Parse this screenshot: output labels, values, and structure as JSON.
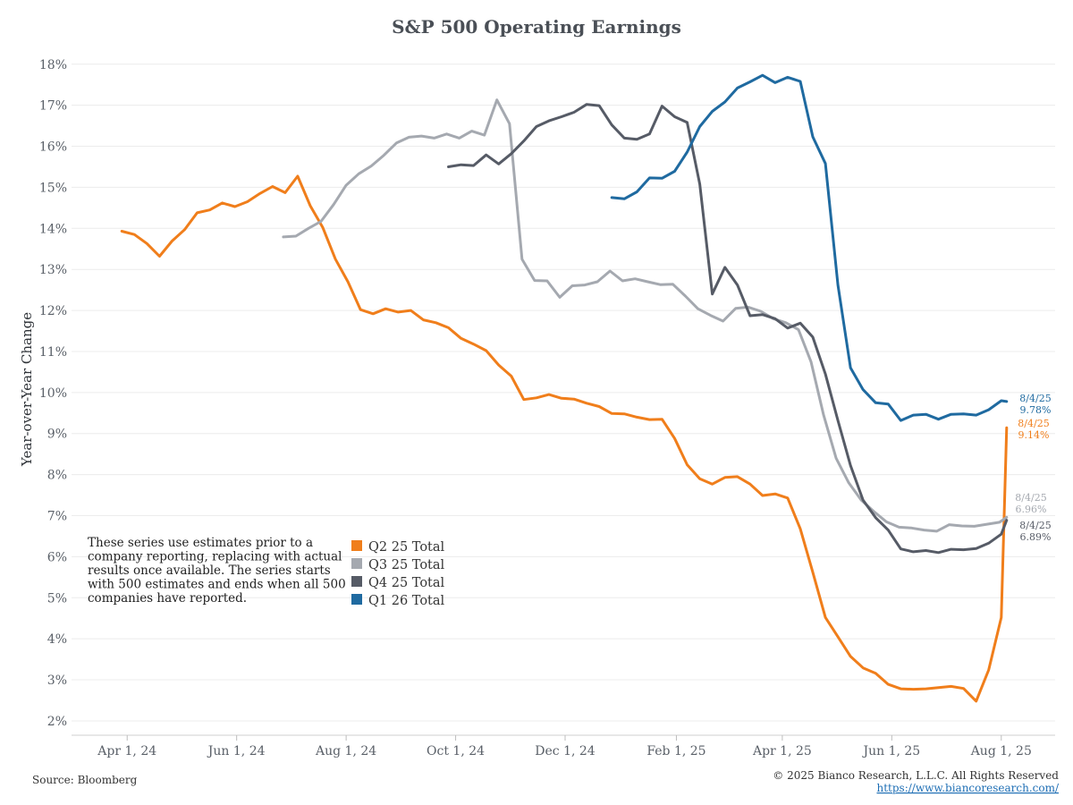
{
  "chart_data": {
    "type": "line",
    "title": "S&P 500 Operating Earnings",
    "ylabel": "Year-over-Year Change",
    "xlabel": "",
    "x_range": [
      "2024-03-01",
      "2025-08-31"
    ],
    "x_ticks": [
      {
        "date": "2024-04-01",
        "label": "Apr 1, 24"
      },
      {
        "date": "2024-06-01",
        "label": "Jun 1, 24"
      },
      {
        "date": "2024-08-01",
        "label": "Aug 1, 24"
      },
      {
        "date": "2024-10-01",
        "label": "Oct 1, 24"
      },
      {
        "date": "2024-12-01",
        "label": "Dec 1, 24"
      },
      {
        "date": "2025-02-01",
        "label": "Feb 1, 25"
      },
      {
        "date": "2025-04-01",
        "label": "Apr 1, 25"
      },
      {
        "date": "2025-06-01",
        "label": "Jun 1, 25"
      },
      {
        "date": "2025-08-01",
        "label": "Aug 1, 25"
      }
    ],
    "ylim": [
      1.65,
      18.3
    ],
    "y_ticks": [
      2,
      3,
      4,
      5,
      6,
      7,
      8,
      9,
      10,
      11,
      12,
      13,
      14,
      15,
      16,
      17,
      18
    ],
    "y_tick_labels": [
      "2%",
      "3%",
      "4%",
      "5%",
      "6%",
      "7%",
      "8%",
      "9%",
      "10%",
      "11%",
      "12%",
      "13%",
      "14%",
      "15%",
      "16%",
      "17%",
      "18%"
    ],
    "grid": true,
    "legend_position": "lower-middle",
    "series": [
      {
        "name": "Q2 25 Total",
        "color": "#f07e1b",
        "points": [
          [
            "2024-03-29",
            13.93
          ],
          [
            "2024-04-05",
            13.85
          ],
          [
            "2024-04-12",
            13.63
          ],
          [
            "2024-04-19",
            13.32
          ],
          [
            "2024-04-26",
            13.69
          ],
          [
            "2024-05-03",
            13.97
          ],
          [
            "2024-05-10",
            14.38
          ],
          [
            "2024-05-17",
            14.45
          ],
          [
            "2024-05-24",
            14.62
          ],
          [
            "2024-05-31",
            14.53
          ],
          [
            "2024-06-07",
            14.65
          ],
          [
            "2024-06-14",
            14.85
          ],
          [
            "2024-06-21",
            15.02
          ],
          [
            "2024-06-28",
            14.87
          ],
          [
            "2024-07-05",
            15.27
          ],
          [
            "2024-07-12",
            14.55
          ],
          [
            "2024-07-19",
            14.02
          ],
          [
            "2024-07-26",
            13.25
          ],
          [
            "2024-08-02",
            12.7
          ],
          [
            "2024-08-09",
            12.02
          ],
          [
            "2024-08-16",
            11.92
          ],
          [
            "2024-08-23",
            12.04
          ],
          [
            "2024-08-30",
            11.96
          ],
          [
            "2024-09-06",
            12.0
          ],
          [
            "2024-09-13",
            11.77
          ],
          [
            "2024-09-20",
            11.7
          ],
          [
            "2024-09-27",
            11.58
          ],
          [
            "2024-10-04",
            11.32
          ],
          [
            "2024-10-11",
            11.18
          ],
          [
            "2024-10-18",
            11.02
          ],
          [
            "2024-10-25",
            10.67
          ],
          [
            "2024-11-01",
            10.4
          ],
          [
            "2024-11-08",
            9.83
          ],
          [
            "2024-11-15",
            9.87
          ],
          [
            "2024-11-22",
            9.95
          ],
          [
            "2024-11-29",
            9.86
          ],
          [
            "2024-12-06",
            9.84
          ],
          [
            "2024-12-13",
            9.74
          ],
          [
            "2024-12-20",
            9.66
          ],
          [
            "2024-12-27",
            9.49
          ],
          [
            "2025-01-03",
            9.48
          ],
          [
            "2025-01-10",
            9.4
          ],
          [
            "2025-01-17",
            9.34
          ],
          [
            "2025-01-24",
            9.35
          ],
          [
            "2025-01-31",
            8.88
          ],
          [
            "2025-02-07",
            8.24
          ],
          [
            "2025-02-14",
            7.9
          ],
          [
            "2025-02-21",
            7.77
          ],
          [
            "2025-02-28",
            7.93
          ],
          [
            "2025-03-07",
            7.95
          ],
          [
            "2025-03-14",
            7.77
          ],
          [
            "2025-03-21",
            7.49
          ],
          [
            "2025-03-28",
            7.53
          ],
          [
            "2025-04-04",
            7.43
          ],
          [
            "2025-04-11",
            6.68
          ],
          [
            "2025-04-18",
            5.62
          ],
          [
            "2025-04-25",
            4.52
          ],
          [
            "2025-05-02",
            4.05
          ],
          [
            "2025-05-09",
            3.57
          ],
          [
            "2025-05-16",
            3.29
          ],
          [
            "2025-05-23",
            3.16
          ],
          [
            "2025-05-30",
            2.89
          ],
          [
            "2025-06-06",
            2.78
          ],
          [
            "2025-06-13",
            2.77
          ],
          [
            "2025-06-20",
            2.78
          ],
          [
            "2025-06-27",
            2.81
          ],
          [
            "2025-07-04",
            2.84
          ],
          [
            "2025-07-11",
            2.79
          ],
          [
            "2025-07-18",
            2.48
          ],
          [
            "2025-07-25",
            3.24
          ],
          [
            "2025-08-01",
            4.52
          ],
          [
            "2025-08-04",
            9.14
          ]
        ]
      },
      {
        "name": "Q3 25 Total",
        "color": "#a5a9b0",
        "points": [
          [
            "2024-06-27",
            13.79
          ],
          [
            "2024-07-04",
            13.81
          ],
          [
            "2024-07-11",
            14.0
          ],
          [
            "2024-07-18",
            14.17
          ],
          [
            "2024-07-25",
            14.58
          ],
          [
            "2024-08-01",
            15.05
          ],
          [
            "2024-08-08",
            15.33
          ],
          [
            "2024-08-15",
            15.52
          ],
          [
            "2024-08-22",
            15.78
          ],
          [
            "2024-08-29",
            16.08
          ],
          [
            "2024-09-05",
            16.22
          ],
          [
            "2024-09-12",
            16.25
          ],
          [
            "2024-09-19",
            16.2
          ],
          [
            "2024-09-26",
            16.3
          ],
          [
            "2024-10-03",
            16.2
          ],
          [
            "2024-10-10",
            16.37
          ],
          [
            "2024-10-17",
            16.27
          ],
          [
            "2024-10-24",
            17.13
          ],
          [
            "2024-10-31",
            16.55
          ],
          [
            "2024-11-07",
            13.25
          ],
          [
            "2024-11-14",
            12.73
          ],
          [
            "2024-11-21",
            12.72
          ],
          [
            "2024-11-28",
            12.32
          ],
          [
            "2024-12-05",
            12.6
          ],
          [
            "2024-12-12",
            12.62
          ],
          [
            "2024-12-19",
            12.7
          ],
          [
            "2024-12-26",
            12.96
          ],
          [
            "2025-01-02",
            12.72
          ],
          [
            "2025-01-09",
            12.77
          ],
          [
            "2025-01-16",
            12.7
          ],
          [
            "2025-01-23",
            12.63
          ],
          [
            "2025-01-30",
            12.64
          ],
          [
            "2025-02-06",
            12.35
          ],
          [
            "2025-02-13",
            12.04
          ],
          [
            "2025-02-20",
            11.88
          ],
          [
            "2025-02-27",
            11.74
          ],
          [
            "2025-03-06",
            12.05
          ],
          [
            "2025-03-13",
            12.08
          ],
          [
            "2025-03-20",
            11.98
          ],
          [
            "2025-03-27",
            11.8
          ],
          [
            "2025-04-03",
            11.7
          ],
          [
            "2025-04-10",
            11.53
          ],
          [
            "2025-04-17",
            10.75
          ],
          [
            "2025-04-24",
            9.45
          ],
          [
            "2025-05-01",
            8.4
          ],
          [
            "2025-05-08",
            7.8
          ],
          [
            "2025-05-15",
            7.38
          ],
          [
            "2025-05-22",
            7.1
          ],
          [
            "2025-05-29",
            6.85
          ],
          [
            "2025-06-05",
            6.72
          ],
          [
            "2025-06-12",
            6.7
          ],
          [
            "2025-06-19",
            6.65
          ],
          [
            "2025-06-26",
            6.62
          ],
          [
            "2025-07-03",
            6.78
          ],
          [
            "2025-07-10",
            6.75
          ],
          [
            "2025-07-17",
            6.74
          ],
          [
            "2025-07-24",
            6.79
          ],
          [
            "2025-07-31",
            6.84
          ],
          [
            "2025-08-04",
            6.96
          ]
        ]
      },
      {
        "name": "Q4 25 Total",
        "color": "#565b66",
        "points": [
          [
            "2024-09-27",
            15.5
          ],
          [
            "2024-10-04",
            15.55
          ],
          [
            "2024-10-11",
            15.53
          ],
          [
            "2024-10-18",
            15.79
          ],
          [
            "2024-10-25",
            15.57
          ],
          [
            "2024-11-01",
            15.82
          ],
          [
            "2024-11-08",
            16.13
          ],
          [
            "2024-11-15",
            16.48
          ],
          [
            "2024-11-22",
            16.62
          ],
          [
            "2024-11-29",
            16.72
          ],
          [
            "2024-12-06",
            16.83
          ],
          [
            "2024-12-13",
            17.02
          ],
          [
            "2024-12-20",
            16.99
          ],
          [
            "2024-12-27",
            16.52
          ],
          [
            "2025-01-03",
            16.2
          ],
          [
            "2025-01-10",
            16.17
          ],
          [
            "2025-01-17",
            16.3
          ],
          [
            "2025-01-24",
            16.98
          ],
          [
            "2025-01-31",
            16.72
          ],
          [
            "2025-02-07",
            16.58
          ],
          [
            "2025-02-14",
            15.08
          ],
          [
            "2025-02-21",
            12.4
          ],
          [
            "2025-02-28",
            13.05
          ],
          [
            "2025-03-07",
            12.62
          ],
          [
            "2025-03-14",
            11.87
          ],
          [
            "2025-03-21",
            11.9
          ],
          [
            "2025-03-28",
            11.8
          ],
          [
            "2025-04-04",
            11.57
          ],
          [
            "2025-04-11",
            11.69
          ],
          [
            "2025-04-18",
            11.35
          ],
          [
            "2025-04-25",
            10.45
          ],
          [
            "2025-05-02",
            9.32
          ],
          [
            "2025-05-09",
            8.22
          ],
          [
            "2025-05-16",
            7.38
          ],
          [
            "2025-05-23",
            6.95
          ],
          [
            "2025-05-30",
            6.65
          ],
          [
            "2025-06-06",
            6.19
          ],
          [
            "2025-06-13",
            6.12
          ],
          [
            "2025-06-20",
            6.15
          ],
          [
            "2025-06-27",
            6.1
          ],
          [
            "2025-07-04",
            6.18
          ],
          [
            "2025-07-11",
            6.17
          ],
          [
            "2025-07-18",
            6.2
          ],
          [
            "2025-07-25",
            6.33
          ],
          [
            "2025-08-01",
            6.55
          ],
          [
            "2025-08-04",
            6.89
          ]
        ]
      },
      {
        "name": "Q1 26 Total",
        "color": "#1f6aa0",
        "points": [
          [
            "2024-12-27",
            14.75
          ],
          [
            "2025-01-03",
            14.72
          ],
          [
            "2025-01-10",
            14.89
          ],
          [
            "2025-01-17",
            15.23
          ],
          [
            "2025-01-24",
            15.22
          ],
          [
            "2025-01-31",
            15.39
          ],
          [
            "2025-02-07",
            15.86
          ],
          [
            "2025-02-14",
            16.48
          ],
          [
            "2025-02-21",
            16.85
          ],
          [
            "2025-02-28",
            17.08
          ],
          [
            "2025-03-07",
            17.42
          ],
          [
            "2025-03-14",
            17.57
          ],
          [
            "2025-03-21",
            17.73
          ],
          [
            "2025-03-28",
            17.55
          ],
          [
            "2025-04-04",
            17.68
          ],
          [
            "2025-04-11",
            17.58
          ],
          [
            "2025-04-18",
            16.23
          ],
          [
            "2025-04-25",
            15.58
          ],
          [
            "2025-05-02",
            12.62
          ],
          [
            "2025-05-09",
            10.6
          ],
          [
            "2025-05-16",
            10.07
          ],
          [
            "2025-05-23",
            9.75
          ],
          [
            "2025-05-30",
            9.72
          ],
          [
            "2025-06-06",
            9.32
          ],
          [
            "2025-06-13",
            9.45
          ],
          [
            "2025-06-20",
            9.47
          ],
          [
            "2025-06-27",
            9.35
          ],
          [
            "2025-07-04",
            9.47
          ],
          [
            "2025-07-11",
            9.48
          ],
          [
            "2025-07-18",
            9.45
          ],
          [
            "2025-07-25",
            9.58
          ],
          [
            "2025-08-01",
            9.8
          ],
          [
            "2025-08-04",
            9.78
          ]
        ]
      }
    ],
    "end_labels": [
      {
        "series": "Q1 26 Total",
        "date": "8/4/25",
        "value": "9.78%",
        "color": "#1f6aa0"
      },
      {
        "series": "Q2 25 Total",
        "date": "8/4/25",
        "value": "9.14%",
        "color": "#f07e1b"
      },
      {
        "series": "Q3 25 Total",
        "date": "8/4/25",
        "value": "6.96%",
        "color": "#a5a9b0"
      },
      {
        "series": "Q4 25 Total",
        "date": "8/4/25",
        "value": "6.89%",
        "color": "#565b66"
      }
    ],
    "annotation": [
      "These series use estimates prior to a",
      "company reporting, replacing with actual",
      "results once available. The series starts",
      "with 500 estimates and ends when all 500",
      "companies have reported."
    ]
  },
  "footer": {
    "source": "Source: Bloomberg",
    "copyright": "© 2025 Bianco Research, L.L.C. All Rights Reserved",
    "url": "https://www.biancoresearch.com/"
  }
}
